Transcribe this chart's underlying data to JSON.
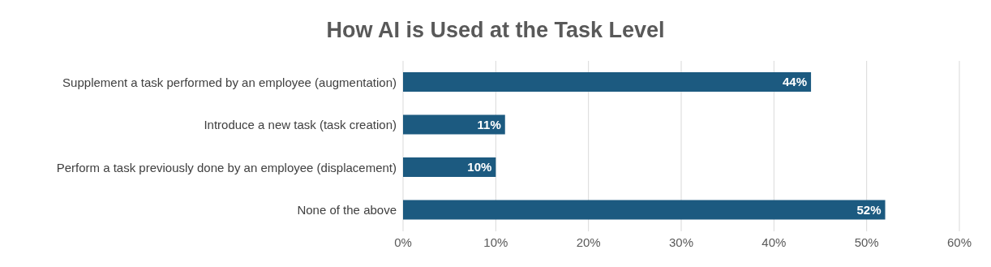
{
  "chart_data": {
    "type": "bar",
    "orientation": "horizontal",
    "title": "How AI is Used at the Task Level",
    "categories": [
      "Supplement a task performed by an employee (augmentation)",
      "Introduce a new task (task creation)",
      "Perform a task previously done by an employee (displacement)",
      "None of the above"
    ],
    "values": [
      44,
      11,
      10,
      52
    ],
    "value_labels": [
      "44%",
      "11%",
      "10%",
      "52%"
    ],
    "color": "#1c5a80",
    "xlim": [
      0,
      60
    ],
    "xticks": [
      {
        "value": 0,
        "label": "0%"
      },
      {
        "value": 10,
        "label": "10%"
      },
      {
        "value": 20,
        "label": "20%"
      },
      {
        "value": 30,
        "label": "30%"
      },
      {
        "value": 40,
        "label": "40%"
      },
      {
        "value": 50,
        "label": "50%"
      },
      {
        "value": 60,
        "label": "60%"
      }
    ],
    "grid": "x",
    "legend": false
  }
}
